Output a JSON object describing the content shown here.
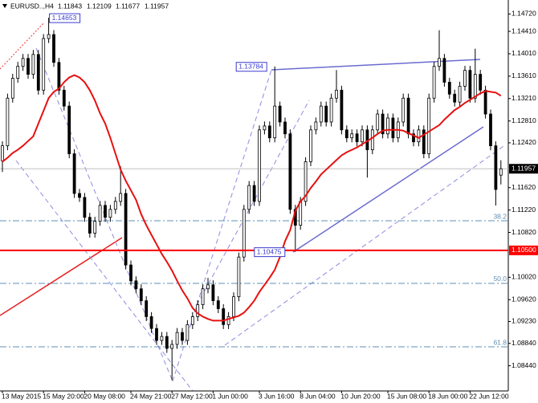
{
  "chart_data": {
    "type": "candlestick",
    "symbol": "EURUSD..,H4",
    "x": [
      "13 May 2015",
      null,
      null,
      null,
      null,
      null,
      null,
      null,
      "15 May 20:00",
      null,
      null,
      null,
      null,
      null,
      null,
      null,
      "20 May 08:00",
      null,
      null,
      null,
      null,
      null,
      null,
      null,
      null,
      "24 May 21:00",
      null,
      null,
      null,
      null,
      null,
      null,
      null,
      "27 May 12:00",
      null,
      null,
      null,
      null,
      null,
      null,
      null,
      "1 Jun 00:00",
      null,
      null,
      null,
      null,
      null,
      null,
      null,
      null,
      "3 Jun 16:00",
      null,
      null,
      null,
      null,
      null,
      null,
      null,
      "8 Jun 04:00",
      null,
      null,
      null,
      null,
      null,
      null,
      null,
      "10 Jun 20:00",
      null,
      null,
      null,
      null,
      null,
      null,
      null,
      null,
      "15 Jun 08:00",
      null,
      null,
      null,
      null,
      null,
      null,
      null,
      "18 Jun 00:00",
      null,
      null,
      null,
      null,
      null,
      null,
      null,
      "22 Jun 12:00",
      null,
      null,
      null,
      null,
      null,
      null
    ],
    "open": [
      1.121,
      1.12367,
      1.13218,
      1.13572,
      1.13785,
      1.13927,
      1.13643,
      1.13998,
      1.1336,
      1.14282,
      1.14353,
      1.13856,
      1.1336,
      1.13076,
      1.12225,
      1.11516,
      1.11445,
      1.1109,
      1.10807,
      1.11019,
      1.11303,
      1.1109,
      1.11232,
      1.11374,
      1.11516,
      1.10239,
      1.09956,
      1.09814,
      1.09601,
      1.09317,
      1.09105,
      1.08892,
      1.08963,
      1.0875,
      1.08821,
      1.09034,
      1.08892,
      1.09175,
      1.09317,
      1.0953,
      1.09814,
      1.09885,
      1.09601,
      1.09459,
      1.09175,
      1.09317,
      1.09672,
      1.10381,
      1.11232,
      1.11658,
      1.11374,
      1.12651,
      1.12721,
      1.12509,
      1.13076,
      1.12792,
      1.1258,
      1.11232,
      1.10948,
      1.11374,
      1.12083,
      1.12651,
      1.12792,
      1.13076,
      1.12792,
      1.13218,
      1.1336,
      1.12651,
      1.12509,
      1.1258,
      1.12438,
      1.12651,
      1.12296,
      1.12651,
      1.12934,
      1.1258,
      1.12863,
      1.12509,
      1.12792,
      1.13218,
      1.1258,
      1.12438,
      1.12651,
      1.12225,
      1.13218,
      1.13785,
      1.13927,
      1.13502,
      1.13289,
      1.13147,
      1.13431,
      1.13714,
      1.13218,
      1.13643,
      1.1336,
      1.12934,
      1.12367,
      1.11843
    ],
    "high": [
      1.12447,
      1.13298,
      1.13652,
      1.13865,
      1.14007,
      1.14007,
      1.14078,
      1.14078,
      1.14362,
      1.14653,
      1.14433,
      1.13936,
      1.1344,
      1.13156,
      1.12305,
      1.11596,
      1.11525,
      1.1117,
      1.11099,
      1.11383,
      1.11383,
      1.11312,
      1.11454,
      1.12,
      1.11596,
      1.10319,
      1.10036,
      1.09894,
      1.09681,
      1.09397,
      1.09185,
      1.09043,
      1.09043,
      1.08901,
      1.09114,
      1.09114,
      1.09255,
      1.09397,
      1.0961,
      1.09894,
      1.1001,
      1.09965,
      1.09681,
      1.09539,
      1.09397,
      1.09752,
      1.10461,
      1.11312,
      1.11738,
      1.11738,
      1.12731,
      1.12801,
      1.12801,
      1.13784,
      1.13156,
      1.12872,
      1.1266,
      1.11312,
      1.11454,
      1.12163,
      1.12731,
      1.12872,
      1.13156,
      1.13156,
      1.13298,
      1.1372,
      1.1344,
      1.12731,
      1.1266,
      1.1266,
      1.12731,
      1.12731,
      1.12731,
      1.13014,
      1.13014,
      1.12943,
      1.12943,
      1.12872,
      1.13298,
      1.13298,
      1.1266,
      1.12731,
      1.12731,
      1.13298,
      1.13865,
      1.1443,
      1.14007,
      1.13582,
      1.13369,
      1.13511,
      1.13794,
      1.13794,
      1.141,
      1.13723,
      1.1344,
      1.13014,
      1.12447,
      1.12109
    ],
    "low": [
      1.119,
      1.12287,
      1.13138,
      1.13492,
      1.13705,
      1.13563,
      1.13563,
      1.1328,
      1.1328,
      1.14202,
      1.13776,
      1.1328,
      1.12996,
      1.12145,
      1.11436,
      1.11365,
      1.1101,
      1.10727,
      1.10727,
      1.10939,
      1.1101,
      1.1101,
      1.11152,
      1.11294,
      1.10159,
      1.09876,
      1.09734,
      1.09521,
      1.09237,
      1.09025,
      1.08812,
      1.08812,
      1.0867,
      1.0818,
      1.08741,
      1.08812,
      1.08812,
      1.09095,
      1.09237,
      1.0945,
      1.09734,
      1.09521,
      1.09379,
      1.09095,
      1.09095,
      1.09237,
      1.09592,
      1.10301,
      1.11152,
      1.11294,
      1.11294,
      1.12571,
      1.12429,
      1.12429,
      1.12712,
      1.125,
      1.11152,
      1.10475,
      1.10868,
      1.11294,
      1.12003,
      1.12571,
      1.12712,
      1.12712,
      1.12712,
      1.13138,
      1.12571,
      1.12429,
      1.12429,
      1.12358,
      1.12358,
      1.118,
      1.12216,
      1.12571,
      1.125,
      1.125,
      1.12429,
      1.12429,
      1.12712,
      1.125,
      1.12358,
      1.12358,
      1.12145,
      1.12145,
      1.13138,
      1.13705,
      1.13422,
      1.13209,
      1.13067,
      1.13067,
      1.13351,
      1.13138,
      1.13138,
      1.1328,
      1.12854,
      1.12287,
      1.113,
      1.11677
    ],
    "close": [
      1.12367,
      1.13218,
      1.13572,
      1.13785,
      1.13927,
      1.13643,
      1.13998,
      1.1336,
      1.14282,
      1.14353,
      1.13856,
      1.1336,
      1.13076,
      1.12225,
      1.11516,
      1.11445,
      1.1109,
      1.10807,
      1.11019,
      1.11303,
      1.1109,
      1.11232,
      1.11374,
      1.11516,
      1.10239,
      1.09956,
      1.09814,
      1.09601,
      1.09317,
      1.09105,
      1.08892,
      1.08963,
      1.0875,
      1.08821,
      1.09034,
      1.08892,
      1.09175,
      1.09317,
      1.0953,
      1.09814,
      1.09885,
      1.09601,
      1.09459,
      1.09175,
      1.09317,
      1.09672,
      1.10381,
      1.11232,
      1.11658,
      1.11374,
      1.12651,
      1.12721,
      1.12509,
      1.13076,
      1.12792,
      1.1258,
      1.11232,
      1.10948,
      1.11374,
      1.12083,
      1.12651,
      1.12792,
      1.13076,
      1.12792,
      1.13218,
      1.1336,
      1.12651,
      1.12509,
      1.1258,
      1.12438,
      1.12651,
      1.12296,
      1.12651,
      1.12934,
      1.1258,
      1.12863,
      1.12509,
      1.12792,
      1.13218,
      1.1258,
      1.12438,
      1.12651,
      1.12225,
      1.13218,
      1.13785,
      1.13927,
      1.13502,
      1.13289,
      1.13147,
      1.13431,
      1.13714,
      1.13218,
      1.13643,
      1.1336,
      1.12934,
      1.12367,
      1.11587,
      1.11957
    ],
    "ma": {
      "color": "#e81010",
      "values": [
        1.12083,
        1.12154,
        1.12239,
        1.12296,
        1.12367,
        1.12452,
        1.12537,
        1.12764,
        1.12991,
        1.13218,
        1.13331,
        1.13388,
        1.13502,
        1.13587,
        1.13629,
        1.13587,
        1.13502,
        1.1336,
        1.13175,
        1.12948,
        1.12764,
        1.12509,
        1.12225,
        1.11941,
        1.11743,
        1.11573,
        1.11402,
        1.11147,
        1.10948,
        1.10778,
        1.10608,
        1.10438,
        1.10296,
        1.1014,
        1.09956,
        1.09785,
        1.09643,
        1.09473,
        1.09374,
        1.09317,
        1.09275,
        1.09246,
        1.09246,
        1.09246,
        1.09275,
        1.09303,
        1.09331,
        1.09388,
        1.09487,
        1.09601,
        1.09757,
        1.09885,
        1.10012,
        1.10154,
        1.10381,
        1.10665,
        1.10863,
        1.11204,
        1.11374,
        1.11473,
        1.11615,
        1.11729,
        1.11856,
        1.11941,
        1.12026,
        1.12112,
        1.12197,
        1.12253,
        1.12296,
        1.12338,
        1.12395,
        1.12452,
        1.12509,
        1.1258,
        1.12636,
        1.12651,
        1.12651,
        1.12651,
        1.12636,
        1.12594,
        1.12551,
        1.12509,
        1.12565,
        1.12622,
        1.12679,
        1.12736,
        1.12835,
        1.1292,
        1.13005,
        1.13062,
        1.13133,
        1.13189,
        1.13246,
        1.13303,
        1.13346,
        1.13331,
        1.13317,
        1.1326
      ]
    },
    "bull_color": "#ffffff",
    "bear_color": "#000000",
    "ylim": [
      1.0799,
      1.1497
    ],
    "yticks": [
      {
        "value": 1.1472,
        "label": "1.14720"
      },
      {
        "value": 1.1441,
        "label": "1.14410"
      },
      {
        "value": 1.1401,
        "label": "1.14010"
      },
      {
        "value": 1.1361,
        "label": "1.13610"
      },
      {
        "value": 1.1321,
        "label": "1.13210"
      },
      {
        "value": 1.1281,
        "label": "1.12810"
      },
      {
        "value": 1.1242,
        "label": "1.12420"
      },
      {
        "value": 1.1162,
        "label": "1.11620"
      },
      {
        "value": 1.1122,
        "label": "1.11220"
      },
      {
        "value": 1.1082,
        "label": "1.10820"
      },
      {
        "value": 1.1002,
        "label": "1.10020"
      },
      {
        "value": 1.0962,
        "label": "1.09620"
      },
      {
        "value": 1.0923,
        "label": "1.09230"
      },
      {
        "value": 1.0884,
        "label": "1.08840"
      },
      {
        "value": 1.0844,
        "label": "1.08440"
      }
    ],
    "levels": [
      {
        "value": 1.105,
        "label": "1.10500",
        "color": "#ff0000"
      }
    ],
    "fib_levels": [
      {
        "value": 1.11028,
        "label": "38.2"
      },
      {
        "value": 1.09911,
        "label": "50.0"
      },
      {
        "value": 1.08778,
        "label": "61.8"
      }
    ],
    "fib_color": "#5f8fb5",
    "price_line_color": "#c0c0c0"
  }
}
